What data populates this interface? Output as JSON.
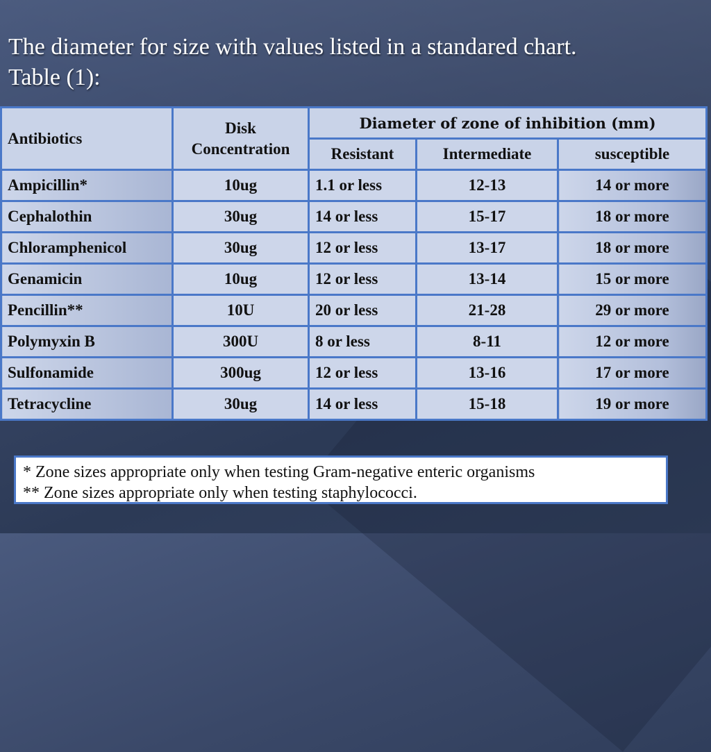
{
  "heading": {
    "line1": "The diameter for size with values listed in a standared chart.",
    "line2": "Table (1):"
  },
  "table": {
    "col_antibiotics": "Antibiotics",
    "col_disk_line1": "Disk",
    "col_disk_line2": "Concentration",
    "col_diameter": "Diameter of zone of inhibition (mm)",
    "col_resistant": "Resistant",
    "col_intermediate": "Intermediate",
    "col_susceptible": "susceptible",
    "rows": [
      {
        "name": "Ampicillin*",
        "disk": "10ug",
        "resistant": "1.1 or less",
        "intermediate": "12-13",
        "susceptible": "14 or more"
      },
      {
        "name": "Cephalothin",
        "disk": "30ug",
        "resistant": "14 or less",
        "intermediate": "15-17",
        "susceptible": "18 or more"
      },
      {
        "name": "Chloramphenicol",
        "disk": "30ug",
        "resistant": "12 or less",
        "intermediate": "13-17",
        "susceptible": "18 or more"
      },
      {
        "name": "Genamicin",
        "disk": "10ug",
        "resistant": "12 or less",
        "intermediate": "13-14",
        "susceptible": "15 or more"
      },
      {
        "name": "Pencillin**",
        "disk": "10U",
        "resistant": "20 or less",
        "intermediate": "21-28",
        "susceptible": "29 or more"
      },
      {
        "name": "Polymyxin B",
        "disk": "300U",
        "resistant": "8 or less",
        "intermediate": "8-11",
        "susceptible": "12 or more"
      },
      {
        "name": "Sulfonamide",
        "disk": "300ug",
        "resistant": "12 or less",
        "intermediate": "13-16",
        "susceptible": "17 or more"
      },
      {
        "name": "Tetracycline",
        "disk": "30ug",
        "resistant": "14 or less",
        "intermediate": "15-18",
        "susceptible": "19 or more"
      }
    ]
  },
  "notes": {
    "line1": "*   Zone sizes appropriate only when testing Gram-negative enteric organisms",
    "line2": "** Zone sizes appropriate only when testing staphylococci."
  }
}
